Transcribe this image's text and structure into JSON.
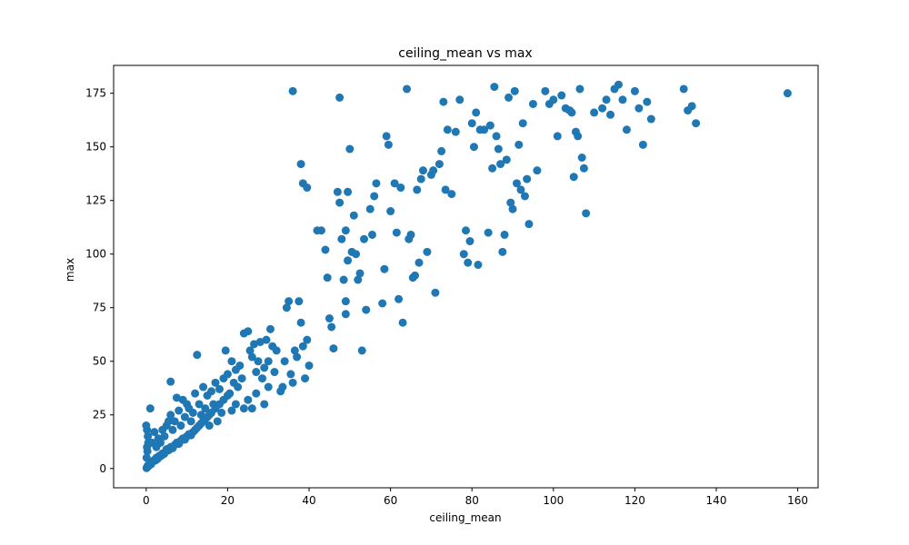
{
  "chart_data": {
    "type": "scatter",
    "title": "ceiling_mean vs max",
    "xlabel": "ceiling_mean",
    "ylabel": "max",
    "xlim": [
      -8,
      165
    ],
    "ylim": [
      -9,
      188
    ],
    "xticks": [
      0,
      20,
      40,
      60,
      80,
      100,
      120,
      140,
      160
    ],
    "yticks": [
      0,
      25,
      50,
      75,
      100,
      125,
      150,
      175
    ],
    "grid": false,
    "legend": "none",
    "marker_color": "#1f77b4",
    "series": [
      {
        "points": [
          [
            0.1,
            0.2
          ],
          [
            0.2,
            0.5
          ],
          [
            0.3,
            1
          ],
          [
            0.4,
            0.8
          ],
          [
            0.5,
            1.5
          ],
          [
            0.6,
            1.2
          ],
          [
            0.8,
            2
          ],
          [
            1,
            2.5
          ],
          [
            1.2,
            2
          ],
          [
            1.5,
            3
          ],
          [
            1.8,
            3.5
          ],
          [
            2,
            4
          ],
          [
            2.3,
            3.8
          ],
          [
            2.5,
            5
          ],
          [
            2.8,
            4.5
          ],
          [
            3,
            5.5
          ],
          [
            3.3,
            6
          ],
          [
            3.6,
            5.8
          ],
          [
            4,
            7
          ],
          [
            4.4,
            6.8
          ],
          [
            4.8,
            8
          ],
          [
            5,
            9
          ],
          [
            5.5,
            8.5
          ],
          [
            6,
            10
          ],
          [
            6.5,
            9.5
          ],
          [
            7,
            11
          ],
          [
            7.5,
            12
          ],
          [
            8,
            11.5
          ],
          [
            8.5,
            13
          ],
          [
            9,
            14
          ],
          [
            9.5,
            13.5
          ],
          [
            10,
            15
          ],
          [
            10.5,
            16
          ],
          [
            11,
            15.5
          ],
          [
            11.5,
            17
          ],
          [
            12,
            18
          ],
          [
            12.5,
            19
          ],
          [
            13,
            20
          ],
          [
            13.5,
            21
          ],
          [
            14,
            22
          ],
          [
            14.5,
            23
          ],
          [
            15,
            24
          ],
          [
            15.5,
            25
          ],
          [
            16,
            26
          ],
          [
            17,
            28
          ],
          [
            18,
            30
          ],
          [
            19,
            32
          ],
          [
            20,
            34
          ],
          [
            0.1,
            5
          ],
          [
            0.3,
            8
          ],
          [
            0.2,
            10
          ],
          [
            0.5,
            12
          ],
          [
            0.4,
            15
          ],
          [
            0.2,
            18
          ],
          [
            0,
            20
          ],
          [
            1,
            28
          ],
          [
            1.5,
            12
          ],
          [
            2,
            17
          ],
          [
            2.5,
            10
          ],
          [
            3,
            14
          ],
          [
            3.5,
            12
          ],
          [
            4,
            18
          ],
          [
            4.5,
            15
          ],
          [
            5,
            20
          ],
          [
            5.5,
            22
          ],
          [
            6,
            25
          ],
          [
            6,
            40.5
          ],
          [
            6.5,
            18
          ],
          [
            7,
            22
          ],
          [
            7.5,
            33
          ],
          [
            8,
            27
          ],
          [
            8.5,
            20
          ],
          [
            9,
            32
          ],
          [
            9.5,
            24
          ],
          [
            10,
            30
          ],
          [
            10.5,
            28
          ],
          [
            11,
            22
          ],
          [
            11.5,
            26
          ],
          [
            12,
            35
          ],
          [
            12.5,
            53
          ],
          [
            13,
            30
          ],
          [
            13.5,
            25
          ],
          [
            14,
            38
          ],
          [
            14.5,
            28
          ],
          [
            15,
            34
          ],
          [
            15.5,
            20
          ],
          [
            16,
            36
          ],
          [
            16.5,
            30
          ],
          [
            17,
            40
          ],
          [
            17.5,
            22
          ],
          [
            18,
            37
          ],
          [
            18.5,
            26
          ],
          [
            19,
            42
          ],
          [
            19.5,
            55
          ],
          [
            20,
            44
          ],
          [
            20.5,
            35
          ],
          [
            21,
            50
          ],
          [
            21.5,
            40
          ],
          [
            22,
            46
          ],
          [
            22.5,
            38
          ],
          [
            23,
            48
          ],
          [
            23.5,
            42
          ],
          [
            24,
            63
          ],
          [
            25,
            64
          ],
          [
            25.5,
            55
          ],
          [
            26,
            52
          ],
          [
            26.5,
            58
          ],
          [
            27,
            45
          ],
          [
            27.5,
            50
          ],
          [
            28,
            59
          ],
          [
            28.5,
            42
          ],
          [
            29,
            47
          ],
          [
            29.5,
            60
          ],
          [
            30,
            50
          ],
          [
            30.5,
            65
          ],
          [
            31,
            57
          ],
          [
            31.5,
            45
          ],
          [
            32,
            55
          ],
          [
            33,
            36
          ],
          [
            33.5,
            38
          ],
          [
            34,
            50
          ],
          [
            34.5,
            75
          ],
          [
            35,
            78
          ],
          [
            35.5,
            44
          ],
          [
            36,
            40
          ],
          [
            36.5,
            55
          ],
          [
            37,
            52
          ],
          [
            37.5,
            78
          ],
          [
            38,
            68
          ],
          [
            38.5,
            57
          ],
          [
            39,
            42
          ],
          [
            39.5,
            60
          ],
          [
            40,
            48
          ],
          [
            21,
            27
          ],
          [
            22,
            30
          ],
          [
            24,
            28
          ],
          [
            25,
            32
          ],
          [
            26,
            28
          ],
          [
            27,
            35
          ],
          [
            29,
            30
          ],
          [
            30,
            38
          ],
          [
            36,
            176
          ],
          [
            38,
            142
          ],
          [
            38.5,
            133
          ],
          [
            39.5,
            131
          ],
          [
            42,
            111
          ],
          [
            43,
            111
          ],
          [
            44,
            102
          ],
          [
            44.5,
            89
          ],
          [
            45,
            70
          ],
          [
            45.5,
            66
          ],
          [
            46,
            56
          ],
          [
            47,
            129
          ],
          [
            47.5,
            124
          ],
          [
            47.5,
            173
          ],
          [
            48,
            107
          ],
          [
            48.5,
            88
          ],
          [
            49,
            111
          ],
          [
            49.5,
            129
          ],
          [
            49.5,
            97
          ],
          [
            49,
            78
          ],
          [
            49,
            72
          ],
          [
            50,
            149
          ],
          [
            50.5,
            101
          ],
          [
            51,
            118
          ],
          [
            51.5,
            100
          ],
          [
            52,
            88
          ],
          [
            52.5,
            91
          ],
          [
            53,
            55
          ],
          [
            53.5,
            107
          ],
          [
            54,
            74
          ],
          [
            55,
            121
          ],
          [
            55.5,
            109
          ],
          [
            56,
            127
          ],
          [
            56.5,
            133
          ],
          [
            58,
            77
          ],
          [
            58.5,
            93
          ],
          [
            59,
            155
          ],
          [
            59.5,
            151
          ],
          [
            60,
            120
          ],
          [
            61,
            133
          ],
          [
            61.5,
            110
          ],
          [
            62,
            79
          ],
          [
            62.5,
            131
          ],
          [
            63,
            68
          ],
          [
            64,
            177
          ],
          [
            64.5,
            107
          ],
          [
            65,
            109
          ],
          [
            65.5,
            89
          ],
          [
            66,
            90
          ],
          [
            66.5,
            130
          ],
          [
            67,
            96
          ],
          [
            67.5,
            135
          ],
          [
            68,
            139
          ],
          [
            69,
            101
          ],
          [
            70,
            137
          ],
          [
            70.5,
            139
          ],
          [
            71,
            82
          ],
          [
            72,
            142
          ],
          [
            72.5,
            148
          ],
          [
            73,
            171
          ],
          [
            73.5,
            130
          ],
          [
            74,
            158
          ],
          [
            75,
            128
          ],
          [
            76,
            157
          ],
          [
            77,
            172
          ],
          [
            78,
            100
          ],
          [
            78.5,
            111
          ],
          [
            79,
            96
          ],
          [
            79.5,
            106
          ],
          [
            80,
            161
          ],
          [
            80.5,
            150
          ],
          [
            81,
            166
          ],
          [
            81.5,
            95
          ],
          [
            82,
            158
          ],
          [
            83,
            158
          ],
          [
            84,
            110
          ],
          [
            84.5,
            160
          ],
          [
            85,
            140
          ],
          [
            85.5,
            178
          ],
          [
            86,
            155
          ],
          [
            86.5,
            149
          ],
          [
            87,
            142
          ],
          [
            87.5,
            101
          ],
          [
            88,
            109
          ],
          [
            88.5,
            144
          ],
          [
            89,
            173
          ],
          [
            89.5,
            124
          ],
          [
            90,
            121
          ],
          [
            90.5,
            176
          ],
          [
            91,
            133
          ],
          [
            91.5,
            151
          ],
          [
            92,
            130
          ],
          [
            92.5,
            161
          ],
          [
            93,
            127
          ],
          [
            93.5,
            135
          ],
          [
            94,
            114
          ],
          [
            95,
            170
          ],
          [
            96,
            139
          ],
          [
            98,
            176
          ],
          [
            99,
            170
          ],
          [
            100,
            172
          ],
          [
            101,
            155
          ],
          [
            102,
            174
          ],
          [
            103,
            168
          ],
          [
            104,
            167
          ],
          [
            104.5,
            166
          ],
          [
            105,
            136
          ],
          [
            105.5,
            157
          ],
          [
            106,
            155
          ],
          [
            106.5,
            177
          ],
          [
            107,
            145
          ],
          [
            107.5,
            140
          ],
          [
            108,
            119
          ],
          [
            110,
            166
          ],
          [
            112,
            168
          ],
          [
            113,
            172
          ],
          [
            114,
            165
          ],
          [
            115,
            177
          ],
          [
            116,
            179
          ],
          [
            117,
            172
          ],
          [
            118,
            158
          ],
          [
            120,
            176
          ],
          [
            121,
            168
          ],
          [
            122,
            151
          ],
          [
            123,
            171
          ],
          [
            124,
            163
          ],
          [
            132,
            177
          ],
          [
            133,
            167
          ],
          [
            134,
            169
          ],
          [
            135,
            161
          ],
          [
            157.5,
            175
          ]
        ]
      }
    ]
  }
}
